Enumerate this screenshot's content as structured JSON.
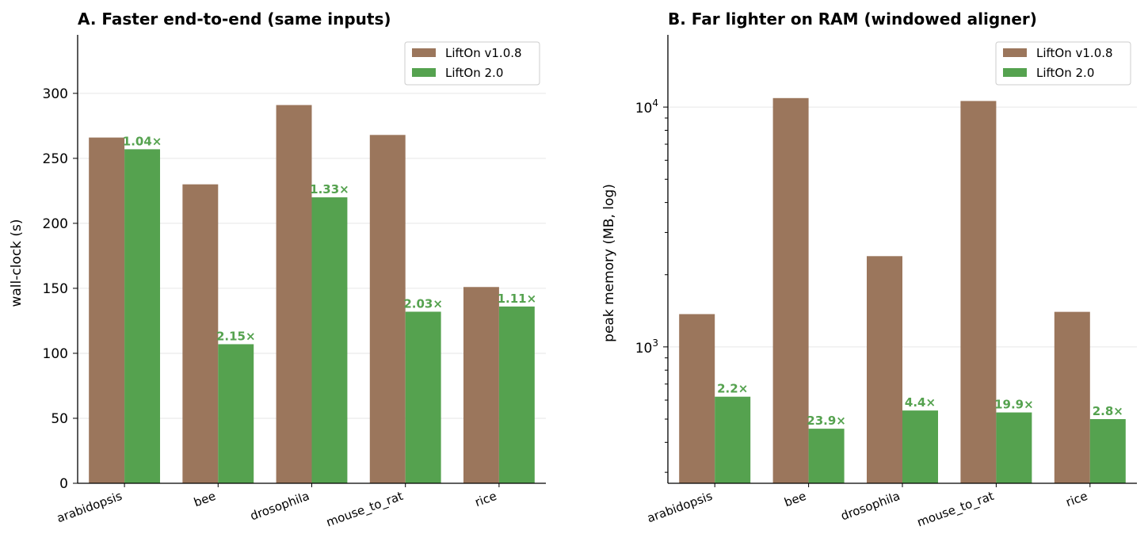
{
  "chart_data": [
    {
      "type": "bar",
      "title": "A.  Faster end-to-end (same inputs)",
      "xlabel": "",
      "ylabel": "wall-clock (s)",
      "yscale": "linear",
      "ylim": [
        0,
        345
      ],
      "yticks": [
        0,
        50,
        100,
        150,
        200,
        250,
        300
      ],
      "ytick_labels": [
        "0",
        "50",
        "100",
        "150",
        "200",
        "250",
        "300"
      ],
      "grid": "horizontal",
      "legend_position": "top-right",
      "categories": [
        "arabidopsis",
        "bee",
        "drosophila",
        "mouse_to_rat",
        "rice"
      ],
      "series": [
        {
          "name": "LiftOn v1.0.8",
          "color": "#9b765c",
          "values": [
            266,
            230,
            291,
            268,
            151
          ]
        },
        {
          "name": "LiftOn 2.0",
          "color": "#55a24f",
          "values": [
            257,
            107,
            220,
            132,
            136
          ]
        }
      ],
      "annotations": [
        "1.04×",
        "2.15×",
        "1.33×",
        "2.03×",
        "1.11×"
      ],
      "annotation_color": "#55a24f"
    },
    {
      "type": "bar",
      "title": "B.  Far lighter on RAM (windowed aligner)",
      "xlabel": "",
      "ylabel": "peak memory (MB, log)",
      "yscale": "log",
      "ylim": [
        270,
        20000
      ],
      "yticks": [
        1000,
        10000
      ],
      "ytick_labels": [
        {
          "base": "10",
          "exp": "3"
        },
        {
          "base": "10",
          "exp": "4"
        }
      ],
      "minor_ticks": [
        300,
        400,
        500,
        600,
        700,
        800,
        900,
        2000,
        3000,
        4000,
        5000,
        6000,
        7000,
        8000,
        9000
      ],
      "grid": "horizontal",
      "legend_position": "top-right",
      "categories": [
        "arabidopsis",
        "bee",
        "drosophila",
        "mouse_to_rat",
        "rice"
      ],
      "series": [
        {
          "name": "LiftOn v1.0.8",
          "color": "#9b765c",
          "values": [
            1370,
            10900,
            2390,
            10600,
            1400
          ]
        },
        {
          "name": "LiftOn 2.0",
          "color": "#55a24f",
          "values": [
            620,
            456,
            543,
            533,
            500
          ]
        }
      ],
      "annotations": [
        "2.2×",
        "23.9×",
        "4.4×",
        "19.9×",
        "2.8×"
      ],
      "annotation_color": "#55a24f"
    }
  ]
}
